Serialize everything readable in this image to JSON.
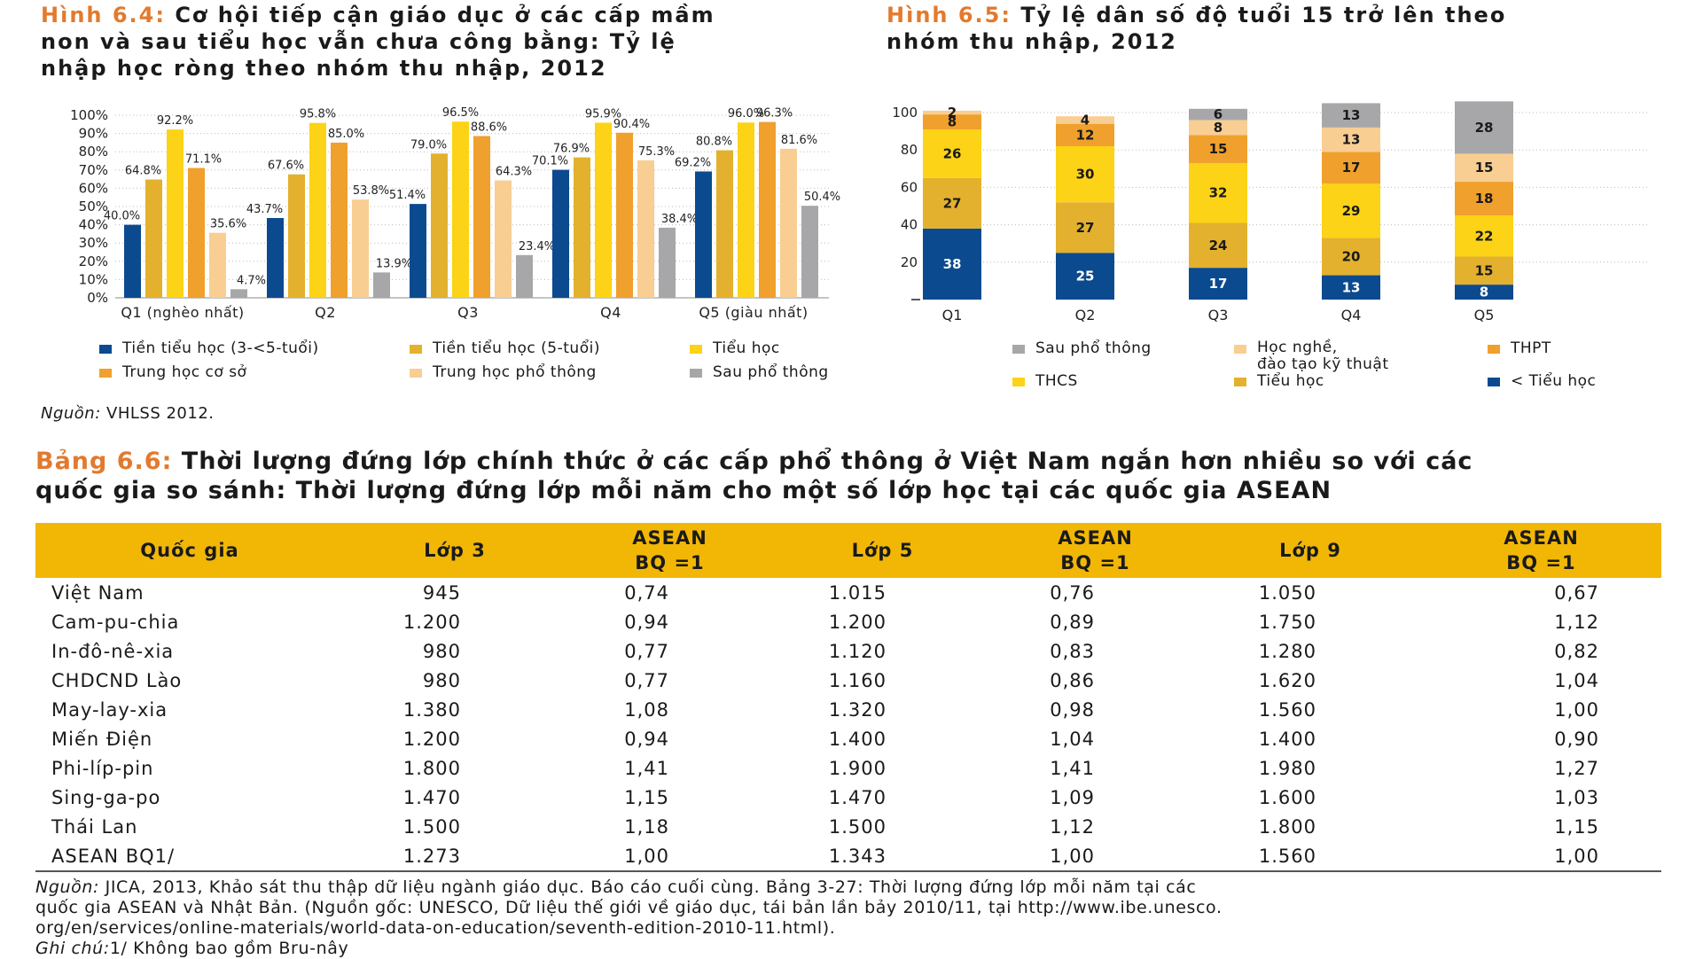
{
  "fig64": {
    "label": "Hình 6.4:",
    "title_lines": [
      "Cơ hội tiếp cận giáo dục ở các cấp mầm",
      "non và sau tiểu học vẫn chưa công bằng: Tỷ lệ",
      "nhập học ròng theo nhóm thu nhập, 2012"
    ],
    "legend": [
      "Tiền tiểu học (3-<5-tuổi)",
      "Tiền tiểu học (5-tuổi)",
      "Tiểu học",
      "Trung học cơ sở",
      "Trung học phổ thông",
      "Sau phổ thông"
    ],
    "source_label": "Nguồn:",
    "source_text": "VHLSS 2012."
  },
  "fig65": {
    "label": "Hình 6.5:",
    "title_lines": [
      "Tỷ lệ dân số độ tuổi 15 trở lên theo",
      "nhóm thu nhập, 2012"
    ],
    "legend": [
      "Sau phổ thông",
      "Học nghề,",
      "đào tạo kỹ thuật",
      "THPT",
      "THCS",
      "Tiểu học",
      "< Tiểu học"
    ]
  },
  "chart_data": [
    {
      "type": "bar",
      "categories": [
        "Q1 (nghèo nhất)",
        "Q2",
        "Q3",
        "Q4",
        "Q5 (giàu nhất)"
      ],
      "y_ticks": [
        "100%",
        "90%",
        "80%",
        "70%",
        "60%",
        "50%",
        "40%",
        "30%",
        "20%",
        "10%",
        "0%"
      ],
      "ylim": [
        0,
        100
      ],
      "series": [
        {
          "name": "Tiền tiểu học (3-<5-tuổi)",
          "color": "#0b4a8f",
          "values": [
            40.0,
            43.7,
            51.4,
            70.1,
            69.2
          ],
          "labels": [
            "40.0%",
            "43.7%",
            "51.4%",
            "70.1%",
            "69.2%"
          ]
        },
        {
          "name": "Tiền tiểu học (5-tuổi)",
          "color": "#e3b12d",
          "values": [
            64.8,
            67.6,
            79.0,
            76.9,
            80.8
          ],
          "labels": [
            "64.8%",
            "67.6%",
            "79.0%",
            "76.9%",
            "80.8%"
          ]
        },
        {
          "name": "Tiểu học",
          "color": "#fcd316",
          "values": [
            92.2,
            95.8,
            96.5,
            95.9,
            96.0
          ],
          "labels": [
            "92.2%",
            "95.8%",
            "96.5%",
            "95.9%",
            "96.0%"
          ]
        },
        {
          "name": "Trung học cơ sở",
          "color": "#f0a02c",
          "values": [
            71.1,
            85.0,
            88.6,
            90.4,
            96.3
          ],
          "labels": [
            "71.1%",
            "85.0%",
            "88.6%",
            "90.4%",
            "96.3%"
          ]
        },
        {
          "name": "Trung học phổ thông",
          "color": "#f8ce93",
          "values": [
            35.6,
            53.8,
            64.3,
            75.3,
            81.6
          ],
          "labels": [
            "35.6%",
            "53.8%",
            "64.3%",
            "75.3%",
            "81.6%"
          ]
        },
        {
          "name": "Sau phổ thông",
          "color": "#a7a7a9",
          "values": [
            4.7,
            13.9,
            23.4,
            38.4,
            50.4
          ],
          "labels": [
            "4.7%",
            "13.9%",
            "23.4%",
            "38.4%",
            "50.4%"
          ]
        }
      ]
    },
    {
      "type": "bar",
      "stacked": true,
      "categories": [
        "Q1",
        "Q2",
        "Q3",
        "Q4",
        "Q5"
      ],
      "y_ticks": [
        "100",
        "80",
        "60",
        "40",
        "20"
      ],
      "ylim": [
        0,
        100
      ],
      "series": [
        {
          "name": "< Tiểu học",
          "color": "#0b4a8f",
          "values": [
            38,
            25,
            17,
            13,
            8
          ]
        },
        {
          "name": "Tiểu học",
          "color": "#e3b12d",
          "values": [
            27,
            27,
            24,
            20,
            15
          ]
        },
        {
          "name": "THCS",
          "color": "#fcd316",
          "values": [
            26,
            30,
            32,
            29,
            22
          ]
        },
        {
          "name": "THPT",
          "color": "#f0a02c",
          "values": [
            8,
            12,
            15,
            17,
            18
          ]
        },
        {
          "name": "Học nghề, đào tạo kỹ thuật",
          "color": "#f8ce93",
          "values": [
            2,
            4,
            8,
            13,
            15
          ]
        },
        {
          "name": "Sau phổ thông",
          "color": "#a7a7a9",
          "values": [
            0,
            0,
            6,
            13,
            28
          ]
        }
      ]
    }
  ],
  "table66": {
    "label": "Bảng 6.6:",
    "title_lines": [
      "Thời lượng đứng lớp chính thức ở các cấp phổ thông ở Việt Nam ngắn hơn nhiều so với các",
      "quốc gia so sánh: Thời lượng đứng lớp mỗi năm cho một số lớp học tại các quốc gia ASEAN"
    ],
    "headers": [
      "Quốc gia",
      "Lớp 3",
      "ASEAN",
      "BQ =1",
      "Lớp 5",
      "ASEAN",
      "BQ =1",
      "Lớp 9",
      "ASEAN",
      "BQ =1"
    ],
    "rows": [
      [
        "Việt Nam",
        "945",
        "0,74",
        "1.015",
        "0,76",
        "1.050",
        "0,67"
      ],
      [
        "Cam-pu-chia",
        "1.200",
        "0,94",
        "1.200",
        "0,89",
        "1.750",
        "1,12"
      ],
      [
        "In-đô-nê-xia",
        "980",
        "0,77",
        "1.120",
        "0,83",
        "1.280",
        "0,82"
      ],
      [
        "CHDCND Lào",
        "980",
        "0,77",
        "1.160",
        "0,86",
        "1.620",
        "1,04"
      ],
      [
        "May-lay-xia",
        "1.380",
        "1,08",
        "1.320",
        "0,98",
        "1.560",
        "1,00"
      ],
      [
        "Miến Điện",
        "1.200",
        "0,94",
        "1.400",
        "1,04",
        "1.400",
        "0,90"
      ],
      [
        "Phi-líp-pin",
        "1.800",
        "1,41",
        "1.900",
        "1,41",
        "1.980",
        "1,27"
      ],
      [
        "Sing-ga-po",
        "1.470",
        "1,15",
        "1.470",
        "1,09",
        "1.600",
        "1,03"
      ],
      [
        "Thái Lan",
        "1.500",
        "1,18",
        "1.500",
        "1,12",
        "1.800",
        "1,15"
      ],
      [
        "ASEAN BQ1/",
        "1.273",
        "1,00",
        "1.343",
        "1,00",
        "1.560",
        "1,00"
      ]
    ],
    "source_label": "Nguồn:",
    "source_lines": [
      "JICA, 2013, Khảo sát thu thập dữ liệu ngành giáo dục. Báo cáo cuối cùng. Bảng 3-27: Thời lượng đứng lớp mỗi năm tại các",
      "quốc gia ASEAN và Nhật Bản. (Nguồn gốc: UNESCO, Dữ liệu thế giới về giáo dục, tái bản lần bảy 2010/11, tại http://www.ibe.unesco.",
      "org/en/services/online-materials/world-data-on-education/seventh-edition-2010-11.html)."
    ],
    "note_label": "Ghi chú:",
    "note_text": "1/ Không bao gồm Bru-nây"
  }
}
